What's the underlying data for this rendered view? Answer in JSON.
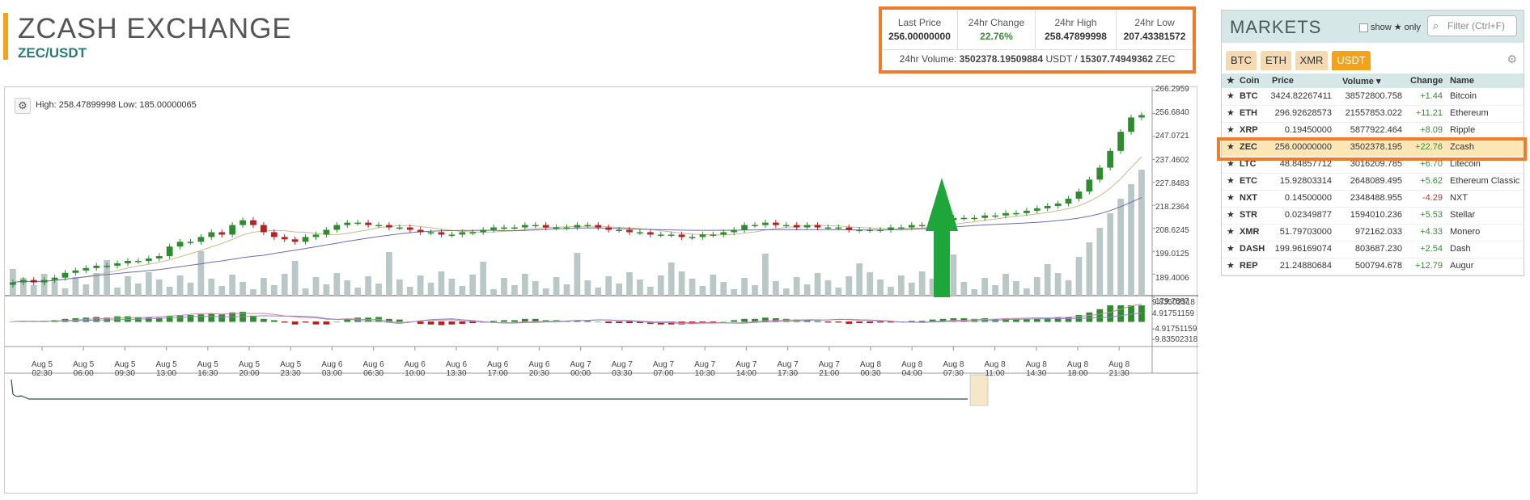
{
  "header": {
    "title": "ZCASH EXCHANGE",
    "pair": "ZEC/USDT"
  },
  "stats": {
    "last_price_label": "Last Price",
    "last_price": "256.00000000",
    "change_label": "24hr Change",
    "change": "22.76%",
    "high_label": "24hr High",
    "high": "258.47899998",
    "low_label": "24hr Low",
    "low": "207.43381572",
    "volume_prefix": "24hr Volume: ",
    "volume_usdt": "3502378.19509884",
    "volume_mid": " USDT / ",
    "volume_zec": "15307.74949362",
    "volume_suffix": " ZEC"
  },
  "chart": {
    "hilo_text": "High: 258.47899998   Low: 185.00000065",
    "y_labels": [
      "266.2959",
      "256.6840",
      "247.0721",
      "237.4602",
      "227.8483",
      "218.2364",
      "208.6245",
      "199.0125",
      "189.4006",
      "179.7887"
    ],
    "macd_labels": [
      "9.83502318",
      "4.91751159",
      "-4.91751159",
      "-9.83502318"
    ],
    "x_labels": [
      [
        "Aug 5",
        "02:30"
      ],
      [
        "Aug 5",
        "06:00"
      ],
      [
        "Aug 5",
        "09:30"
      ],
      [
        "Aug 5",
        "13:00"
      ],
      [
        "Aug 5",
        "16:30"
      ],
      [
        "Aug 5",
        "20:00"
      ],
      [
        "Aug 5",
        "23:30"
      ],
      [
        "Aug 6",
        "03:00"
      ],
      [
        "Aug 6",
        "06:30"
      ],
      [
        "Aug 6",
        "10:00"
      ],
      [
        "Aug 6",
        "13:30"
      ],
      [
        "Aug 6",
        "17:00"
      ],
      [
        "Aug 6",
        "20:30"
      ],
      [
        "Aug 7",
        "00:00"
      ],
      [
        "Aug 7",
        "03:30"
      ],
      [
        "Aug 7",
        "07:00"
      ],
      [
        "Aug 7",
        "10:30"
      ],
      [
        "Aug 7",
        "14:00"
      ],
      [
        "Aug 7",
        "17:30"
      ],
      [
        "Aug 7",
        "21:00"
      ],
      [
        "Aug 8",
        "00:30"
      ],
      [
        "Aug 8",
        "04:00"
      ],
      [
        "Aug 8",
        "07:30"
      ],
      [
        "Aug 8",
        "11:00"
      ],
      [
        "Aug 8",
        "14:30"
      ],
      [
        "Aug 8",
        "18:00"
      ],
      [
        "Aug 8",
        "21:30"
      ]
    ],
    "colors": {
      "up": "#2e8b2e",
      "down": "#b22222",
      "volume": "#b9c7c7",
      "ma_short": "#c9b98a",
      "ma_long": "#6b6bb5",
      "arrow": "#1fa63a"
    }
  },
  "chart_data": {
    "type": "candlestick",
    "title": "",
    "ylim": [
      179.7887,
      266.2959
    ],
    "y_ticks": [
      266.2959,
      256.684,
      247.0721,
      237.4602,
      227.8483,
      218.2364,
      208.6245,
      199.0125,
      189.4006,
      179.7887
    ],
    "close_series": [
      186,
      187,
      186,
      187,
      188,
      190,
      191,
      192,
      193,
      193,
      194,
      195,
      195,
      196,
      197,
      201,
      203,
      203,
      205,
      207,
      206,
      210,
      212,
      210,
      207,
      205,
      204,
      203,
      205,
      206,
      208,
      210,
      211,
      211,
      210,
      210,
      209,
      209,
      208,
      207,
      207,
      206,
      206,
      207,
      207,
      208,
      209,
      209,
      209,
      210,
      210,
      209,
      209,
      209,
      210,
      210,
      209,
      208,
      208,
      207,
      207,
      206,
      206,
      206,
      205,
      205,
      206,
      206,
      207,
      208,
      210,
      210,
      211,
      210,
      210,
      209,
      210,
      209,
      209,
      209,
      208,
      208,
      208,
      208,
      209,
      209,
      210,
      210,
      211,
      212,
      213,
      213,
      213,
      214,
      214,
      215,
      215,
      216,
      217,
      218,
      219,
      221,
      224,
      229,
      234,
      241,
      249,
      255,
      256
    ]
  },
  "markets": {
    "title": "MARKETS",
    "show_only": "show ★ only",
    "filter_placeholder": "Filter (Ctrl+F)",
    "tabs": [
      "BTC",
      "ETH",
      "XMR",
      "USDT"
    ],
    "active_tab": "USDT",
    "columns": [
      "Coin",
      "Price",
      "Volume ▾",
      "Change",
      "Name"
    ],
    "rows": [
      {
        "coin": "BTC",
        "price": "3424.82267411",
        "volume": "38572800.758",
        "change": "+1.44",
        "name": "Bitcoin"
      },
      {
        "coin": "ETH",
        "price": "296.92628573",
        "volume": "21557853.022",
        "change": "+11.21",
        "name": "Ethereum"
      },
      {
        "coin": "XRP",
        "price": "0.19450000",
        "volume": "5877922.464",
        "change": "+8.09",
        "name": "Ripple"
      },
      {
        "coin": "ZEC",
        "price": "256.00000000",
        "volume": "3502378.195",
        "change": "+22.76",
        "name": "Zcash"
      },
      {
        "coin": "LTC",
        "price": "48.84857712",
        "volume": "3016209.785",
        "change": "+6.70",
        "name": "Litecoin"
      },
      {
        "coin": "ETC",
        "price": "15.92803314",
        "volume": "2648089.495",
        "change": "+5.62",
        "name": "Ethereum Classic"
      },
      {
        "coin": "NXT",
        "price": "0.14500000",
        "volume": "2348488.955",
        "change": "-4.29",
        "name": "NXT"
      },
      {
        "coin": "STR",
        "price": "0.02349877",
        "volume": "1594010.236",
        "change": "+5.53",
        "name": "Stellar"
      },
      {
        "coin": "XMR",
        "price": "51.79703000",
        "volume": "972162.033",
        "change": "+4.33",
        "name": "Monero"
      },
      {
        "coin": "DASH",
        "price": "199.96169074",
        "volume": "803687.230",
        "change": "+2.54",
        "name": "Dash"
      },
      {
        "coin": "REP",
        "price": "21.24880684",
        "volume": "500794.678",
        "change": "+12.79",
        "name": "Augur"
      }
    ]
  }
}
